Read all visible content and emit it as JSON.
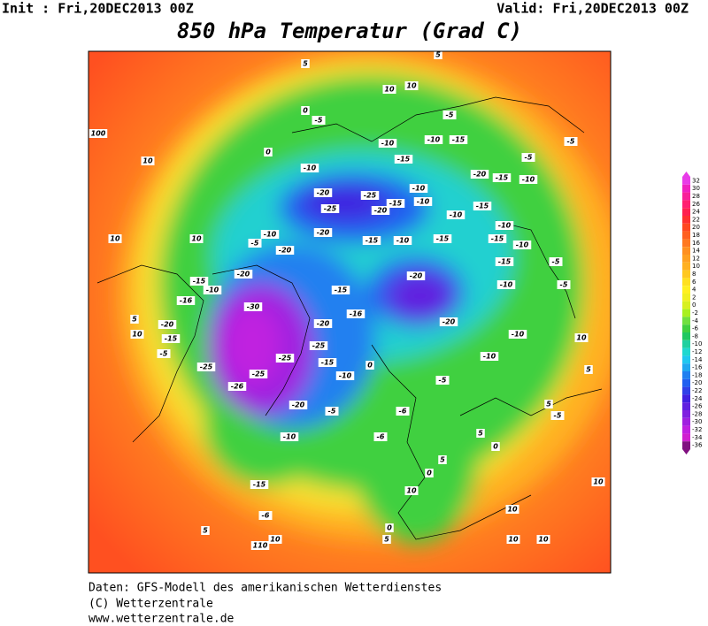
{
  "header": {
    "init": "Init : Fri,20DEC2013 00Z",
    "valid": "Valid: Fri,20DEC2013 00Z",
    "title": "850 hPa Temperatur (Grad C)"
  },
  "colorbar": {
    "labels": [
      32,
      30,
      28,
      26,
      24,
      22,
      20,
      18,
      16,
      14,
      12,
      10,
      8,
      6,
      4,
      2,
      0,
      -2,
      -4,
      -6,
      -8,
      -10,
      -12,
      -14,
      -16,
      -18,
      -20,
      -22,
      -24,
      -26,
      -28,
      -30,
      -32,
      -34,
      -36
    ],
    "colors": [
      "#e83ce8",
      "#f020c0",
      "#f8209a",
      "#ff2070",
      "#ff2050",
      "#ff3030",
      "#ff4820",
      "#ff6020",
      "#ff7820",
      "#ff9020",
      "#ffa020",
      "#ffb020",
      "#ffc820",
      "#ffe020",
      "#fff020",
      "#f0f020",
      "#d8f020",
      "#a8f020",
      "#70e040",
      "#40d040",
      "#20c860",
      "#20d0a0",
      "#20d8d0",
      "#20c8f0",
      "#20a8f0",
      "#2080f0",
      "#2060f0",
      "#3040e8",
      "#4020e0",
      "#6020e0",
      "#8020e0",
      "#a020e0",
      "#c020e0",
      "#d020d0",
      "#801080"
    ]
  },
  "map": {
    "labels": [
      "5",
      "5",
      "10",
      "10",
      "100",
      "10",
      "0",
      "-5",
      "0",
      "-10",
      "-20",
      "-25",
      "-25",
      "-20",
      "-15",
      "-10",
      "-10",
      "-10",
      "-15",
      "-10",
      "-15",
      "-5",
      "-20",
      "-15",
      "-10",
      "-5",
      "-5",
      "-10",
      "-15",
      "-10",
      "-15",
      "-10",
      "-15",
      "-5",
      "-15",
      "-10",
      "-15",
      "-20",
      "-10",
      "-20",
      "-20",
      "-15",
      "-10",
      "-16",
      "-30",
      "-15",
      "-20",
      "-20",
      "-16",
      "-20",
      "-25",
      "-25",
      "-25",
      "-25",
      "-26",
      "-15",
      "-10",
      "-20",
      "-10",
      "-5",
      "-6",
      "-6",
      "0",
      "-5",
      "-10",
      "-10",
      "-10",
      "-5",
      "-20",
      "-15",
      "-5",
      "5",
      "10",
      "10",
      "10",
      "-5",
      "-15",
      "-6",
      "5",
      "110",
      "10",
      "10",
      "0",
      "5",
      "10",
      "10",
      "10",
      "10",
      "5",
      "5",
      "-5",
      "10",
      "5",
      "0",
      "5",
      "0"
    ]
  },
  "footer": {
    "lines": [
      "Daten: GFS-Modell des amerikanischen Wetterdienstes",
      "(C) Wetterzentrale",
      "www.wetterzentrale.de"
    ]
  }
}
